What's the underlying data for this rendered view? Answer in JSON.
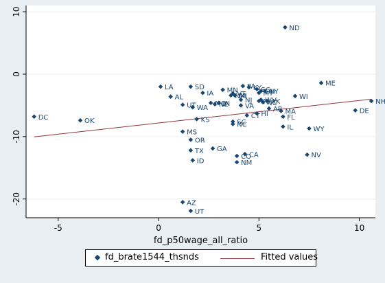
{
  "chart_data": {
    "type": "scatter",
    "xlabel": "fd_p50wage_all_ratio",
    "ylabel": "",
    "xlim": [
      -6.6,
      10.8
    ],
    "ylim": [
      -23.0,
      11.0
    ],
    "x_ticks": [
      "-5",
      "0",
      "5",
      "10"
    ],
    "x_tick_values": [
      -5,
      0,
      5,
      10
    ],
    "y_ticks": [
      "-20",
      "-10",
      "0",
      "10"
    ],
    "y_tick_values": [
      -20,
      -10,
      0,
      10
    ],
    "grid": "horizontal",
    "legend_position": "bottom",
    "colors": {
      "points": "#1a476f",
      "fit": "#90353b",
      "background": "#e8eef2",
      "plot": "#ffffff",
      "grid": "#e8eef2"
    },
    "series": [
      {
        "name": "fd_brate1544_thsnds",
        "kind": "scatter",
        "points": [
          {
            "label": "ND",
            "x": 6.3,
            "y": 7.5
          },
          {
            "label": "ME",
            "x": 8.1,
            "y": -1.4
          },
          {
            "label": "NH",
            "x": 10.6,
            "y": -4.3
          },
          {
            "label": "DE",
            "x": 9.8,
            "y": -5.8
          },
          {
            "label": "WI",
            "x": 6.8,
            "y": -3.5
          },
          {
            "label": "WY",
            "x": 7.5,
            "y": -8.7
          },
          {
            "label": "NV",
            "x": 7.4,
            "y": -12.9
          },
          {
            "label": "DC",
            "x": -6.2,
            "y": -6.8
          },
          {
            "label": "OK",
            "x": -3.9,
            "y": -7.4
          },
          {
            "label": "LA",
            "x": 0.1,
            "y": -2.0
          },
          {
            "label": "SD",
            "x": 1.6,
            "y": -2.0
          },
          {
            "label": "AL",
            "x": 0.6,
            "y": -3.6
          },
          {
            "label": "IA",
            "x": 2.2,
            "y": -3.0
          },
          {
            "label": "UT",
            "x": 1.2,
            "y": -4.9
          },
          {
            "label": "WA",
            "x": 1.7,
            "y": -5.3
          },
          {
            "label": "MO",
            "x": 2.6,
            "y": -4.6
          },
          {
            "label": "NE",
            "x": 2.8,
            "y": -4.8
          },
          {
            "label": "IN",
            "x": 3.0,
            "y": -4.6
          },
          {
            "label": "KS",
            "x": 1.9,
            "y": -7.2
          },
          {
            "label": "MS",
            "x": 1.2,
            "y": -9.2
          },
          {
            "label": "OR",
            "x": 1.6,
            "y": -10.5
          },
          {
            "label": "TX",
            "x": 1.6,
            "y": -12.2
          },
          {
            "label": "ID",
            "x": 1.7,
            "y": -13.8
          },
          {
            "label": "GA",
            "x": 2.7,
            "y": -11.9
          },
          {
            "label": "AZ",
            "x": 1.2,
            "y": -20.5
          },
          {
            "label": "UT",
            "x": 1.6,
            "y": -21.9
          },
          {
            "label": "MN",
            "x": 3.2,
            "y": -2.5
          },
          {
            "label": "VT",
            "x": 3.7,
            "y": -3.1
          },
          {
            "label": "MI",
            "x": 3.8,
            "y": -3.4
          },
          {
            "label": "PA",
            "x": 4.2,
            "y": -1.9
          },
          {
            "label": "KY",
            "x": 4.5,
            "y": -2.1
          },
          {
            "label": "SC",
            "x": 4.9,
            "y": -2.4
          },
          {
            "label": "OH",
            "x": 5.1,
            "y": -2.7
          },
          {
            "label": "NY",
            "x": 5.3,
            "y": -2.7
          },
          {
            "label": "MT",
            "x": 5.0,
            "y": -3.0
          },
          {
            "label": "NM",
            "x": 3.6,
            "y": -3.4
          },
          {
            "label": "NJ",
            "x": 4.1,
            "y": -4.1
          },
          {
            "label": "RI",
            "x": 5.0,
            "y": -4.3
          },
          {
            "label": "NC",
            "x": 5.2,
            "y": -4.5
          },
          {
            "label": "WV",
            "x": 5.1,
            "y": -4.1
          },
          {
            "label": "AK",
            "x": 5.4,
            "y": -4.3
          },
          {
            "label": "VA",
            "x": 4.1,
            "y": -5.0
          },
          {
            "label": "AR",
            "x": 5.5,
            "y": -5.5
          },
          {
            "label": "MA",
            "x": 6.1,
            "y": -5.9
          },
          {
            "label": "HI",
            "x": 4.9,
            "y": -6.3
          },
          {
            "label": "CT",
            "x": 4.4,
            "y": -6.6
          },
          {
            "label": "FL",
            "x": 6.2,
            "y": -6.8
          },
          {
            "label": "SC",
            "x": 3.7,
            "y": -7.6
          },
          {
            "label": "NC",
            "x": 3.7,
            "y": -8.0
          },
          {
            "label": "IL",
            "x": 6.2,
            "y": -8.4
          },
          {
            "label": "CA",
            "x": 4.3,
            "y": -12.8
          },
          {
            "label": "CO",
            "x": 3.9,
            "y": -13.1
          },
          {
            "label": "NM",
            "x": 3.9,
            "y": -14.1
          }
        ]
      },
      {
        "name": "Fitted values",
        "kind": "line",
        "x": [
          -6.2,
          10.6
        ],
        "y": [
          -10.05,
          -4.0
        ]
      }
    ]
  }
}
